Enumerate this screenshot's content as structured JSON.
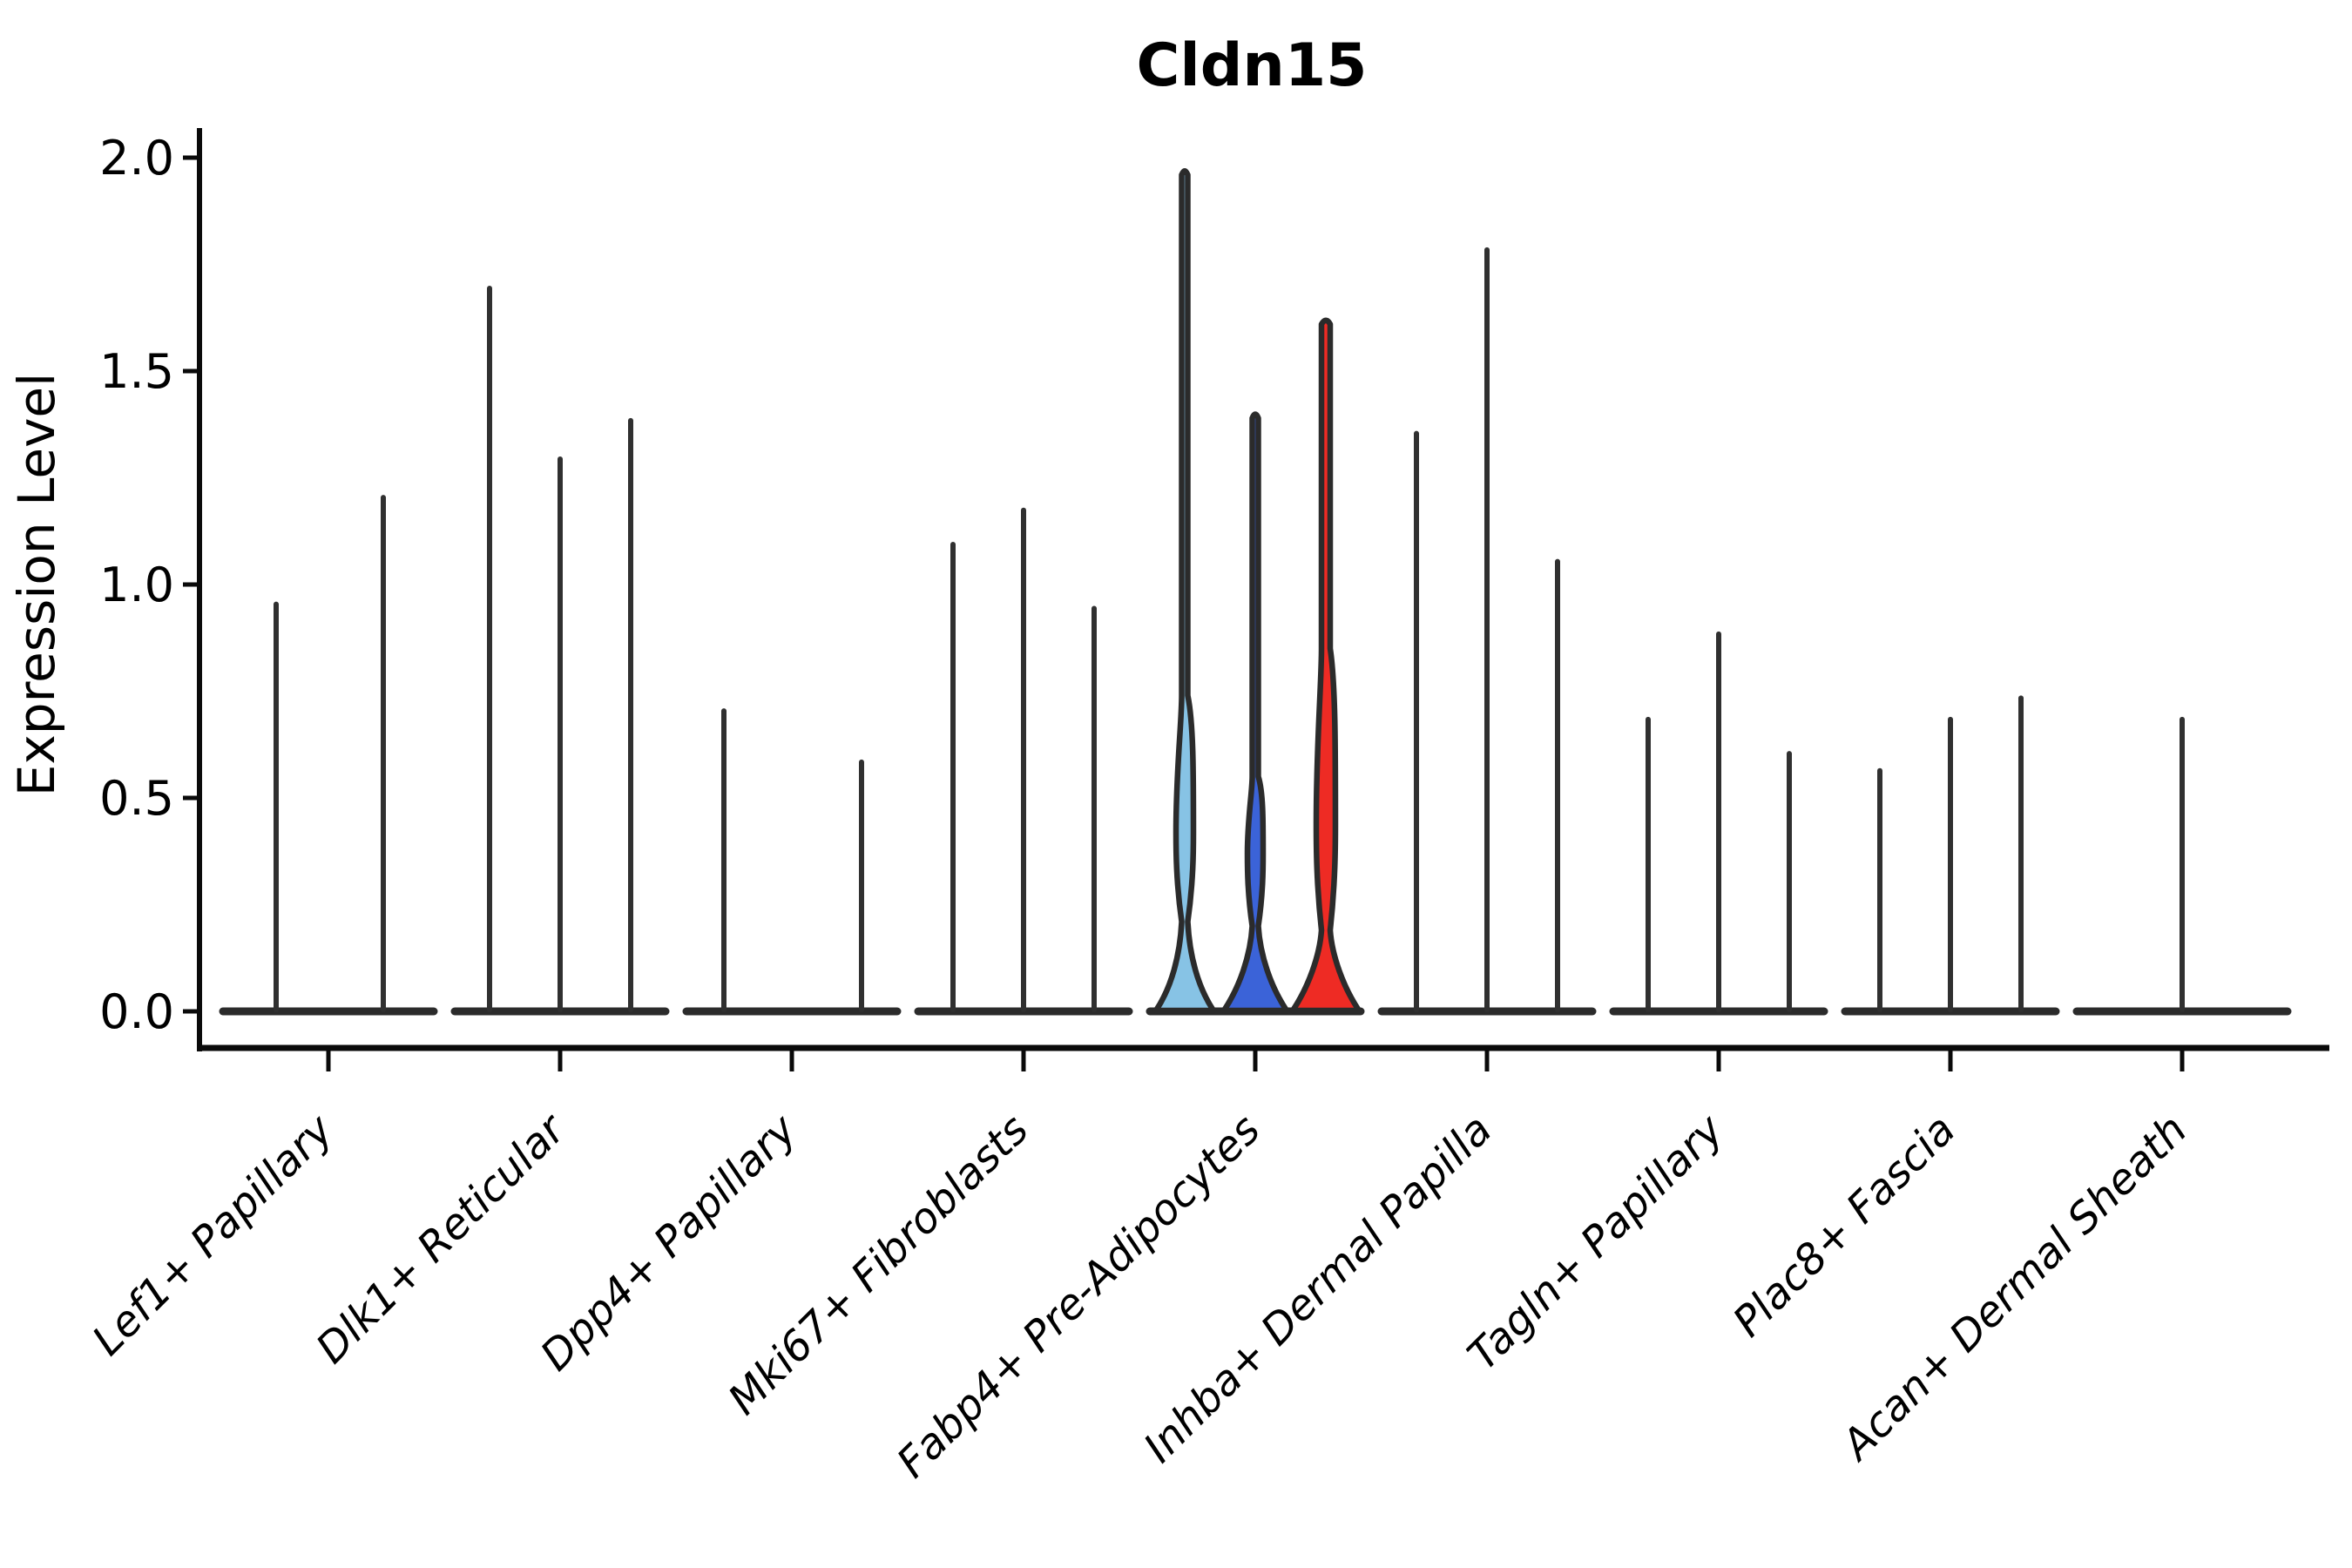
{
  "chart_data": {
    "type": "violin",
    "title": "Cldn15",
    "ylabel": "Expression Level",
    "xlabel": "",
    "ylim": [
      0,
      2.05
    ],
    "grid": false,
    "legend": null,
    "yticks": [
      {
        "label": "0.0",
        "value": 0.0
      },
      {
        "label": "0.5",
        "value": 0.5
      },
      {
        "label": "1.0",
        "value": 1.0
      },
      {
        "label": "1.5",
        "value": 1.5
      },
      {
        "label": "2.0",
        "value": 2.0
      }
    ],
    "colors": {
      "outline": "#2b2b2b",
      "spike": "#303030",
      "axis": "#0a0a0a",
      "highlight_palette": [
        "#87C3E5",
        "#3B63D8",
        "#EE2B24"
      ]
    },
    "categories": [
      {
        "label": "Lef1+ Papillary",
        "violins": [
          {
            "offset": -60,
            "max": 0.96
          },
          {
            "offset": 63,
            "max": 1.21
          }
        ]
      },
      {
        "label": "Dlk1+ Reticular",
        "violins": [
          {
            "offset": -81,
            "max": 1.7
          },
          {
            "offset": 0,
            "max": 1.3
          },
          {
            "offset": 81,
            "max": 1.39
          }
        ]
      },
      {
        "label": "Dpp4+ Papillary",
        "violins": [
          {
            "offset": -78,
            "max": 0.71
          },
          {
            "offset": 80,
            "max": 0.59
          }
        ]
      },
      {
        "label": "Mki67+ Fibroblasts",
        "violins": [
          {
            "offset": -81,
            "max": 1.1
          },
          {
            "offset": 0,
            "max": 1.18
          },
          {
            "offset": 81,
            "max": 0.95
          }
        ]
      },
      {
        "label": "Fabp4+ Pre-Adipocytes",
        "violins": [
          {
            "offset": -81,
            "max": 1.97,
            "color": "#87C3E5",
            "base_half_width": 33,
            "neck_half_width": 3.5,
            "bulge": {
              "lo": 0.21,
              "hi": 0.74,
              "peak": 0.42,
              "half_width": 10
            }
          },
          {
            "offset": 0,
            "max": 1.4,
            "color": "#3B63D8",
            "base_half_width": 36,
            "neck_half_width": 3.5,
            "bulge": {
              "lo": 0.2,
              "hi": 0.55,
              "peak": 0.37,
              "half_width": 9
            }
          },
          {
            "offset": 81,
            "max": 1.62,
            "color": "#EE2B24",
            "base_half_width": 38,
            "neck_half_width": 5,
            "bulge": {
              "lo": 0.19,
              "hi": 0.85,
              "peak": 0.44,
              "half_width": 11
            }
          }
        ]
      },
      {
        "label": "Inhba+ Dermal Papilla",
        "violins": [
          {
            "offset": -81,
            "max": 1.36
          },
          {
            "offset": 0,
            "max": 1.79
          },
          {
            "offset": 81,
            "max": 1.06
          }
        ]
      },
      {
        "label": "Tagln+ Papillary",
        "violins": [
          {
            "offset": -81,
            "max": 0.69
          },
          {
            "offset": 0,
            "max": 0.89
          },
          {
            "offset": 81,
            "max": 0.61
          }
        ]
      },
      {
        "label": "Plac8+ Fascia",
        "violins": [
          {
            "offset": -81,
            "max": 0.57
          },
          {
            "offset": 0,
            "max": 0.69
          },
          {
            "offset": 81,
            "max": 0.74
          }
        ]
      },
      {
        "label": "Acan+ Dermal Sheath",
        "violins": [
          {
            "offset": 0,
            "max": 0.69
          }
        ]
      }
    ]
  }
}
